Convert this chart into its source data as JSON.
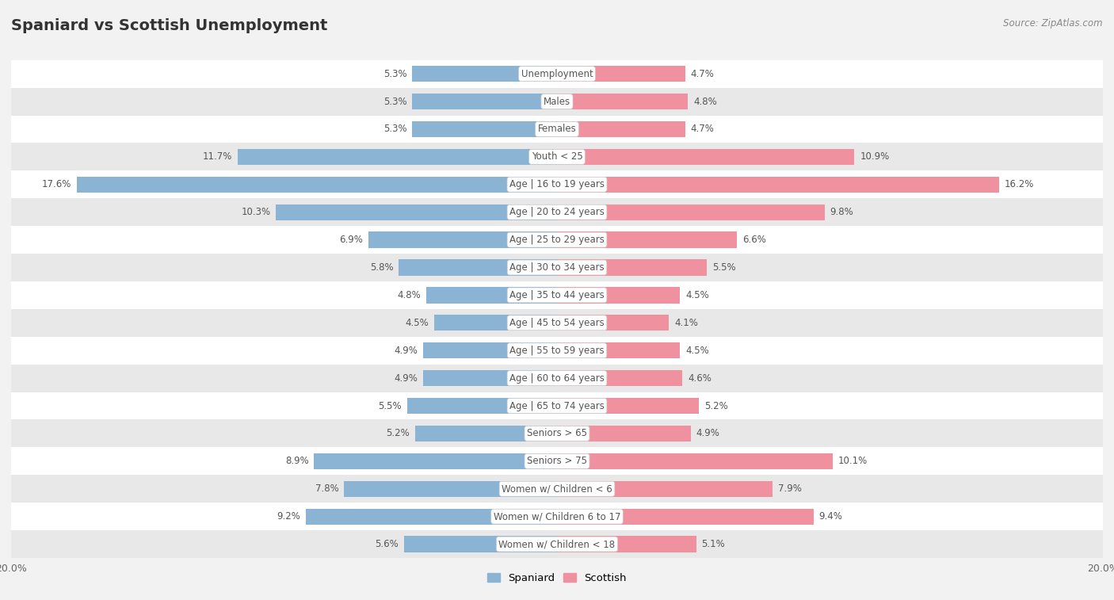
{
  "title": "Spaniard vs Scottish Unemployment",
  "source": "Source: ZipAtlas.com",
  "categories": [
    "Unemployment",
    "Males",
    "Females",
    "Youth < 25",
    "Age | 16 to 19 years",
    "Age | 20 to 24 years",
    "Age | 25 to 29 years",
    "Age | 30 to 34 years",
    "Age | 35 to 44 years",
    "Age | 45 to 54 years",
    "Age | 55 to 59 years",
    "Age | 60 to 64 years",
    "Age | 65 to 74 years",
    "Seniors > 65",
    "Seniors > 75",
    "Women w/ Children < 6",
    "Women w/ Children 6 to 17",
    "Women w/ Children < 18"
  ],
  "spaniard": [
    5.3,
    5.3,
    5.3,
    11.7,
    17.6,
    10.3,
    6.9,
    5.8,
    4.8,
    4.5,
    4.9,
    4.9,
    5.5,
    5.2,
    8.9,
    7.8,
    9.2,
    5.6
  ],
  "scottish": [
    4.7,
    4.8,
    4.7,
    10.9,
    16.2,
    9.8,
    6.6,
    5.5,
    4.5,
    4.1,
    4.5,
    4.6,
    5.2,
    4.9,
    10.1,
    7.9,
    9.4,
    5.1
  ],
  "spaniard_color": "#8ab3d4",
  "scottish_color": "#f0919f",
  "bar_height": 0.58,
  "xlim": 20.0,
  "background_color": "#f2f2f2",
  "row_color_light": "#ffffff",
  "row_color_dark": "#e8e8e8",
  "legend_spaniard": "Spaniard",
  "legend_scottish": "Scottish",
  "label_color": "#555555",
  "center_label_bg": "#ffffff",
  "center_label_color": "#555555"
}
